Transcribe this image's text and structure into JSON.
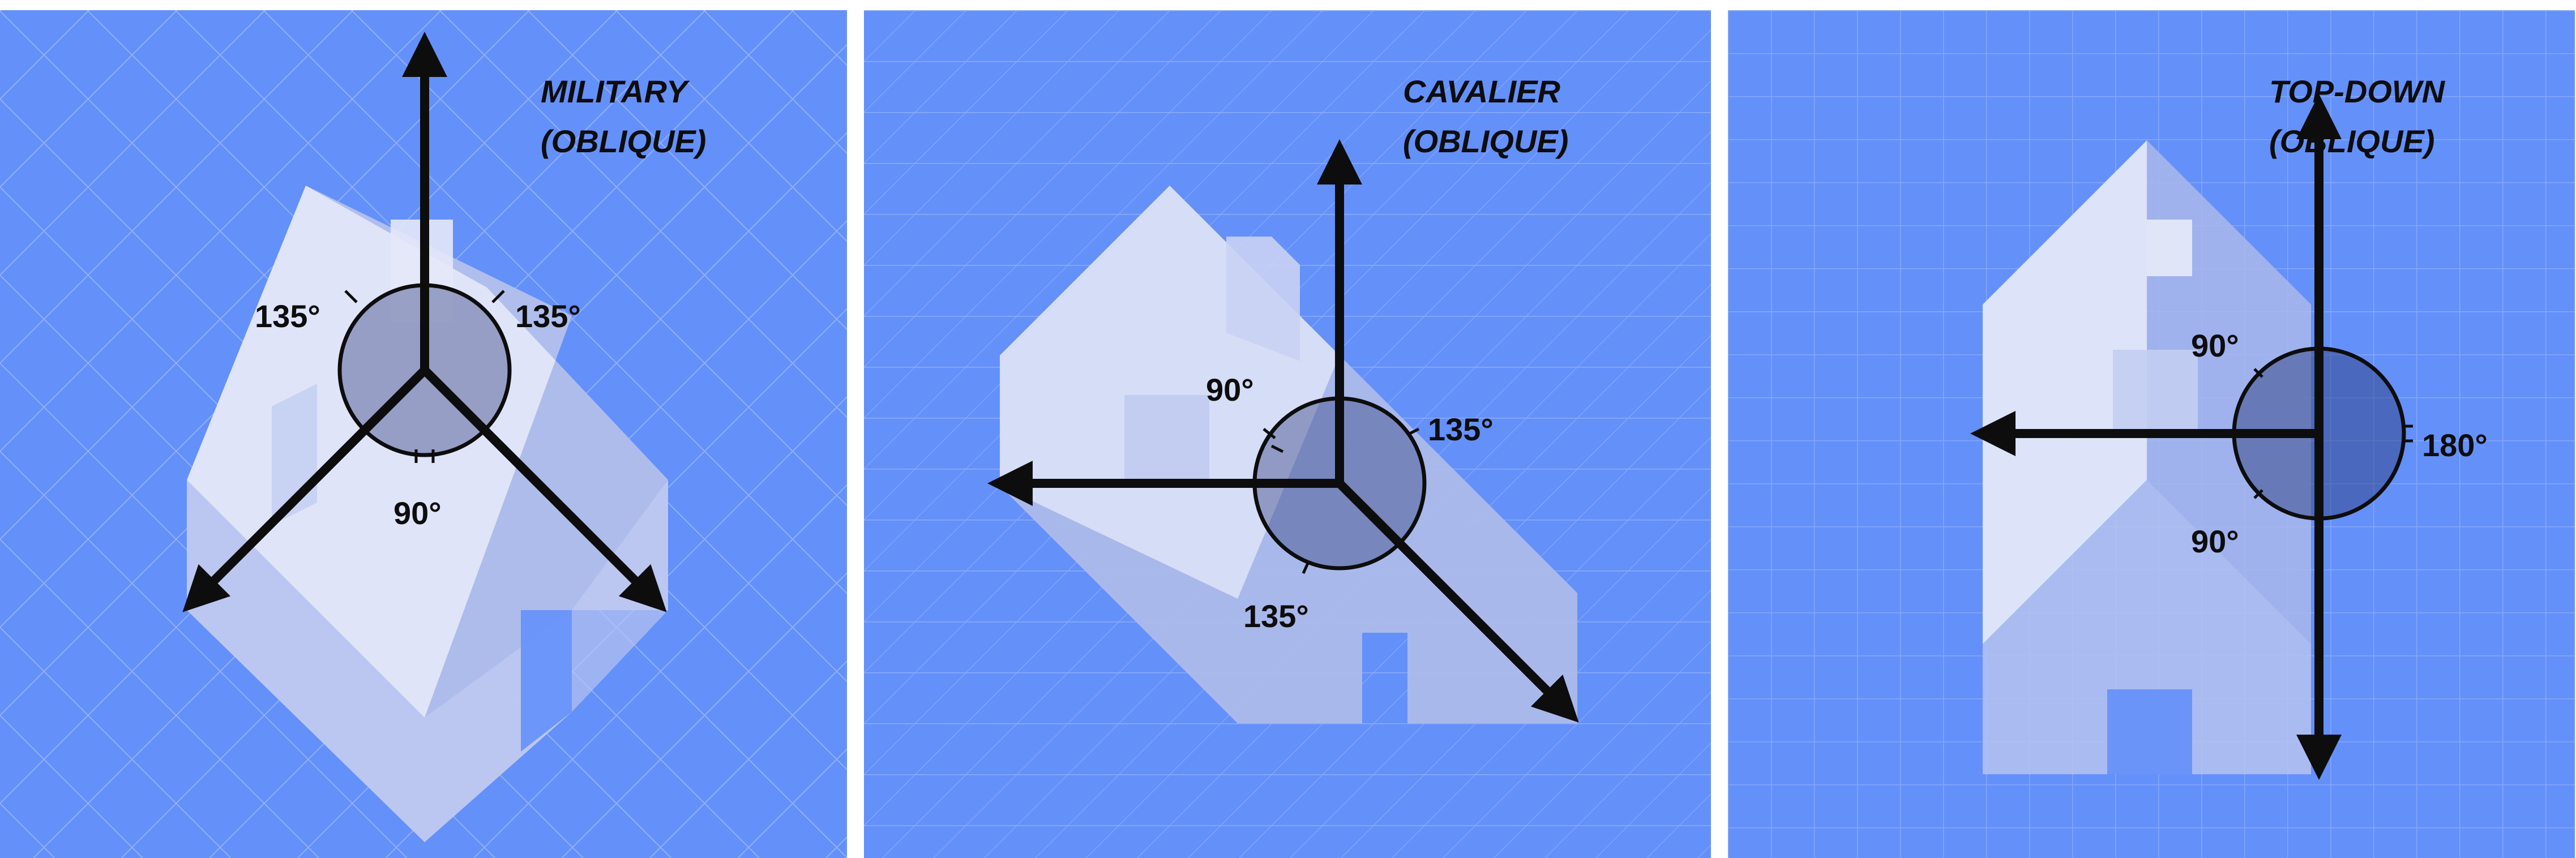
{
  "panels": [
    {
      "title_line1": "MILITARY",
      "title_line2": "(OBLIQUE)",
      "angles": [
        "135°",
        "135°",
        "90°"
      ]
    },
    {
      "title_line1": "CAVALIER",
      "title_line2": "(OBLIQUE)",
      "angles": [
        "90°",
        "135°",
        "135°"
      ]
    },
    {
      "title_line1": "TOP-DOWN",
      "title_line2": "(OBLIQUE)",
      "angles": [
        "90°",
        "180°",
        "90°"
      ]
    }
  ],
  "colors": {
    "background": "#6490fa",
    "house_light": "#d6dcf5",
    "house_mid": "#b8c4ee",
    "house_dark": "#a3b2e6",
    "axis": "#0d0d0d",
    "circle_fill": "#4a5a9a"
  },
  "icons": [
    "house-icon",
    "axis-arrow-icon",
    "angle-circle-icon"
  ]
}
